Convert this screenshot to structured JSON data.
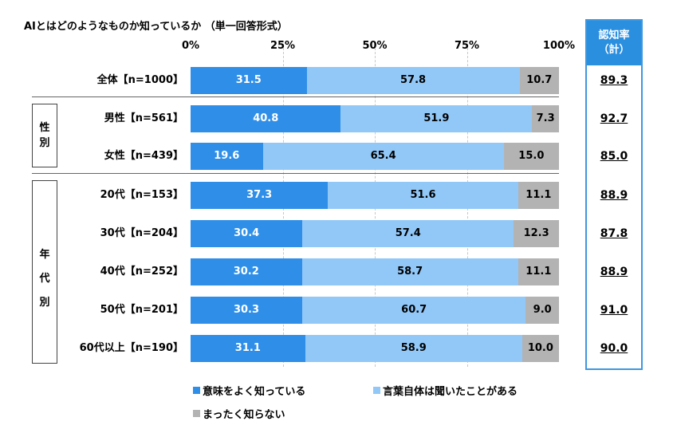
{
  "title": "AIとはどのようなものか知っているか （単一回答形式）",
  "axis_ticks": [
    "0%",
    "25%",
    "50%",
    "75%",
    "100%"
  ],
  "colors": {
    "well_known": "#2f8fe8",
    "heard_of": "#92c8f8",
    "not_known": "#b3b3b3",
    "accent_border": "#3d97df"
  },
  "recognition": {
    "header_line1": "認知率",
    "header_line2": "（計）"
  },
  "groups": {
    "gender": [
      "性",
      "別"
    ],
    "age": [
      "年",
      "代",
      "別"
    ]
  },
  "legend": {
    "well_known": "意味をよく知っている",
    "heard_of": "言葉自体は聞いたことがある",
    "not_known": "まったく知らない"
  },
  "chart_data": {
    "type": "bar",
    "orientation": "horizontal",
    "stacked": true,
    "title": "AIとはどのようなものか知っているか （単一回答形式）",
    "xlim": [
      0,
      100
    ],
    "x_ticks": [
      "0%",
      "25%",
      "50%",
      "75%",
      "100%"
    ],
    "grid": true,
    "legend_position": "bottom",
    "categories": [
      "全体【n=1000】",
      "男性【n=561】",
      "女性【n=439】",
      "20代【n=153】",
      "30代【n=204】",
      "40代【n=252】",
      "50代【n=201】",
      "60代以上【n=190】"
    ],
    "series": [
      {
        "name": "意味をよく知っている",
        "values": [
          "31.5",
          "40.8",
          "19.6",
          "37.3",
          "30.4",
          "30.2",
          "30.3",
          "31.1"
        ]
      },
      {
        "name": "言葉自体は聞いたことがある",
        "values": [
          "57.8",
          "51.9",
          "65.4",
          "51.6",
          "57.4",
          "58.7",
          "60.7",
          "58.9"
        ]
      },
      {
        "name": "まったく知らない",
        "values": [
          "10.7",
          "7.3",
          "15.0",
          "11.1",
          "12.3",
          "11.1",
          "9.0",
          "10.0"
        ]
      }
    ],
    "recognition_rate": [
      "89.3",
      "92.7",
      "85.0",
      "88.9",
      "87.8",
      "88.9",
      "91.0",
      "90.0"
    ]
  }
}
